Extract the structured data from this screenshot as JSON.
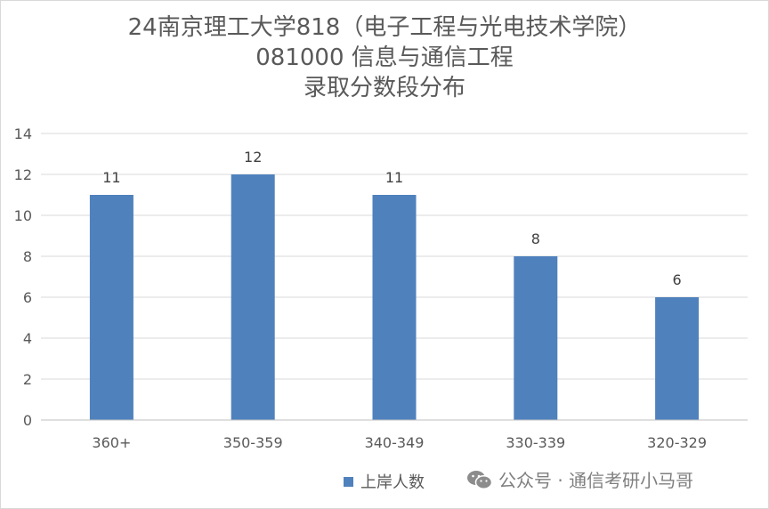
{
  "chart_data": {
    "type": "bar",
    "title_lines": [
      "24南京理工大学818（电子工程与光电技术学院）",
      "081000 信息与通信工程",
      "录取分数段分布"
    ],
    "categories": [
      "360+",
      "350-359",
      "340-349",
      "330-339",
      "320-329"
    ],
    "series": [
      {
        "name": "上岸人数",
        "values": [
          11,
          12,
          11,
          8,
          6
        ]
      }
    ],
    "data_labels": [
      "11",
      "12",
      "11",
      "8",
      "6"
    ],
    "y_ticks": [
      "0",
      "2",
      "4",
      "6",
      "8",
      "10",
      "12",
      "14"
    ],
    "ylim": [
      0,
      14
    ],
    "grid": true,
    "legend_position": "bottom",
    "colors": {
      "bar": "#4f81bd",
      "grid": "#d9d9d9",
      "text": "#595959"
    }
  },
  "watermark": {
    "icon": "wechat-icon",
    "text": "公众号 · 通信考研小马哥"
  }
}
